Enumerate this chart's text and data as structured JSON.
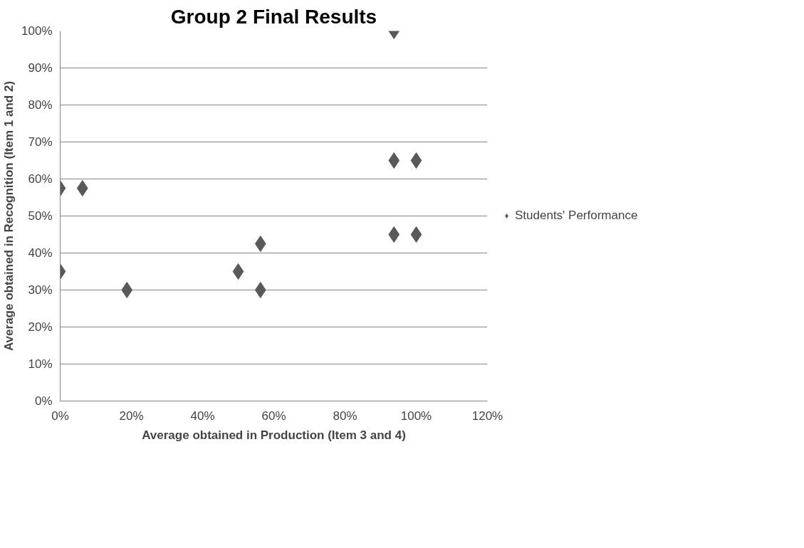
{
  "chart_data": {
    "type": "scatter",
    "title": "Group 2 Final Results",
    "xlabel": "Average obtained in Production (Item 3 and 4)",
    "ylabel": "Average obtained in Recognition (Item 1 and 2)",
    "series": [
      {
        "name": "Students' Performance",
        "color": "#595959",
        "x": [
          0,
          0,
          6.25,
          18.75,
          50,
          56.25,
          56.25,
          93.75,
          93.75,
          93.75,
          100,
          100
        ],
        "values": [
          57.5,
          35,
          57.5,
          30,
          35,
          42.5,
          30,
          100,
          65,
          45,
          65,
          45
        ]
      }
    ],
    "xlim": [
      0,
      120
    ],
    "ylim": [
      0,
      100
    ],
    "xticks": [
      {
        "value": 0,
        "label": "0%"
      },
      {
        "value": 20,
        "label": "20%"
      },
      {
        "value": 40,
        "label": "40%"
      },
      {
        "value": 60,
        "label": "60%"
      },
      {
        "value": 80,
        "label": "80%"
      },
      {
        "value": 100,
        "label": "100%"
      },
      {
        "value": 120,
        "label": "120%"
      }
    ],
    "yticks": [
      {
        "value": 0,
        "label": "0%"
      },
      {
        "value": 10,
        "label": "10%"
      },
      {
        "value": 20,
        "label": "20%"
      },
      {
        "value": 30,
        "label": "30%"
      },
      {
        "value": 40,
        "label": "40%"
      },
      {
        "value": 50,
        "label": "50%"
      },
      {
        "value": 60,
        "label": "60%"
      },
      {
        "value": 70,
        "label": "70%"
      },
      {
        "value": 80,
        "label": "80%"
      },
      {
        "value": 90,
        "label": "90%"
      },
      {
        "value": 100,
        "label": "100%"
      }
    ],
    "grid": "y",
    "legend": "right",
    "marker": "diamond"
  }
}
